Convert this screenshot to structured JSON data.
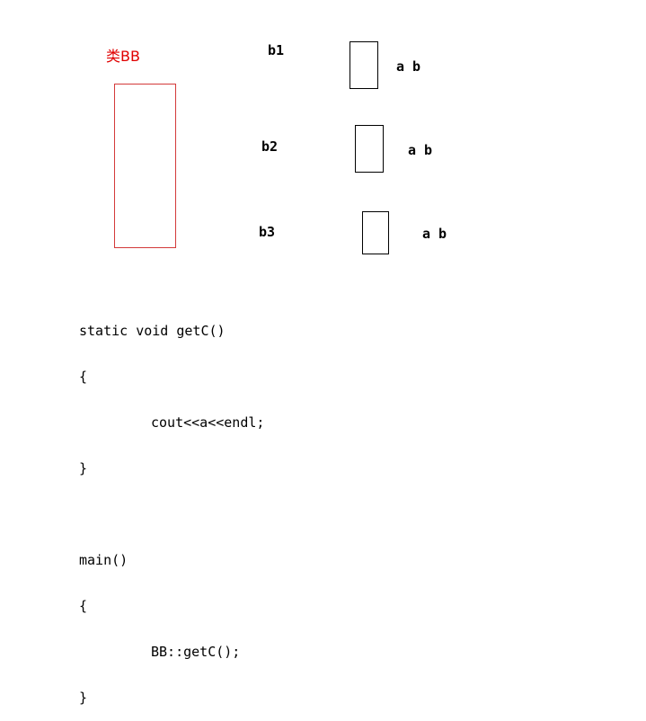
{
  "class_label": "类BB",
  "objects": [
    {
      "name": "b1",
      "members": "a b"
    },
    {
      "name": "b2",
      "members": "a b"
    },
    {
      "name": "b3",
      "members": "a b"
    }
  ],
  "code_lines": [
    "static void getC()",
    "{",
    "cout<<a<<endl;",
    "}",
    "",
    "main()",
    "{",
    "BB::getC();",
    "}"
  ],
  "colors": {
    "class_accent": "#d33a3a",
    "text": "#000000"
  }
}
